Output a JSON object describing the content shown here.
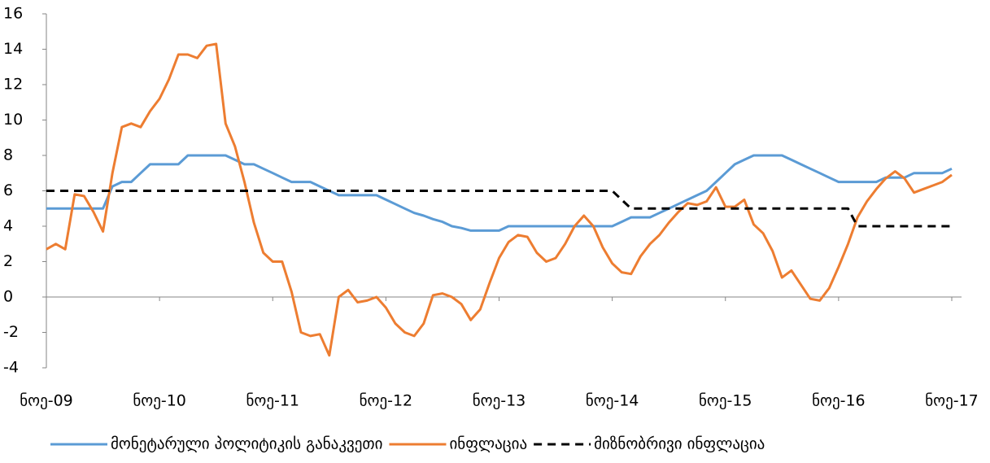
{
  "chart_data": {
    "type": "line",
    "categories": [
      "ნოე-09",
      null,
      null,
      null,
      null,
      null,
      null,
      null,
      null,
      null,
      null,
      null,
      "ნოე-10",
      null,
      null,
      null,
      null,
      null,
      null,
      null,
      null,
      null,
      null,
      null,
      "ნოე-11",
      null,
      null,
      null,
      null,
      null,
      null,
      null,
      null,
      null,
      null,
      null,
      "ნოე-12",
      null,
      null,
      null,
      null,
      null,
      null,
      null,
      null,
      null,
      null,
      null,
      "ნოე-13",
      null,
      null,
      null,
      null,
      null,
      null,
      null,
      null,
      null,
      null,
      null,
      "ნოე-14",
      null,
      null,
      null,
      null,
      null,
      null,
      null,
      null,
      null,
      null,
      null,
      "ნოე-15",
      null,
      null,
      null,
      null,
      null,
      null,
      null,
      null,
      null,
      null,
      null,
      "ნოე-16",
      null,
      null,
      null,
      null,
      null,
      null,
      null,
      null,
      null,
      null,
      null,
      "ნოე-17"
    ],
    "series": [
      {
        "name": "მონეტარული პოლიტიკის განაკვეთი",
        "color": "#5b9bd5",
        "dash": false,
        "values": [
          5,
          5,
          5,
          5,
          5,
          5,
          5,
          6.25,
          6.5,
          6.5,
          7,
          7.5,
          7.5,
          7.5,
          7.5,
          8,
          8,
          8,
          8,
          8,
          7.75,
          7.5,
          7.5,
          7.25,
          7,
          6.75,
          6.5,
          6.5,
          6.5,
          6.25,
          6,
          5.75,
          5.75,
          5.75,
          5.75,
          5.75,
          5.5,
          5.25,
          5,
          4.75,
          4.6,
          4.4,
          4.25,
          4,
          3.9,
          3.75,
          3.75,
          3.75,
          3.75,
          4,
          4,
          4,
          4,
          4,
          4,
          4,
          4,
          4,
          4,
          4,
          4,
          4.25,
          4.5,
          4.5,
          4.5,
          4.75,
          5,
          5.25,
          5.5,
          5.75,
          6,
          6.5,
          7,
          7.5,
          7.75,
          8,
          8,
          8,
          8,
          7.75,
          7.5,
          7.25,
          7,
          6.75,
          6.5,
          6.5,
          6.5,
          6.5,
          6.5,
          6.75,
          6.75,
          6.75,
          7,
          7,
          7,
          7,
          7.25
        ]
      },
      {
        "name": "ინფლაცია",
        "color": "#ed7d31",
        "dash": false,
        "values": [
          2.7,
          3,
          2.7,
          5.8,
          5.7,
          4.8,
          3.7,
          7,
          9.6,
          9.8,
          9.6,
          10.5,
          11.2,
          12.3,
          13.7,
          13.7,
          13.5,
          14.2,
          14.3,
          9.8,
          8.5,
          6.5,
          4.2,
          2.5,
          2,
          2,
          0.3,
          -2,
          -2.2,
          -2.1,
          -3.3,
          0,
          0.4,
          -0.3,
          -0.2,
          0,
          -0.6,
          -1.5,
          -2,
          -2.2,
          -1.5,
          0.1,
          0.2,
          0,
          -0.4,
          -1.3,
          -0.7,
          0.8,
          2.2,
          3.1,
          3.5,
          3.4,
          2.5,
          2,
          2.2,
          3,
          4,
          4.6,
          4,
          2.8,
          1.9,
          1.4,
          1.3,
          2.3,
          3,
          3.5,
          4.2,
          4.8,
          5.3,
          5.2,
          5.4,
          6.2,
          5.1,
          5.1,
          5.5,
          4.1,
          3.6,
          2.6,
          1.1,
          1.5,
          0.7,
          -0.1,
          -0.2,
          0.5,
          1.7,
          3,
          4.5,
          5.4,
          6.1,
          6.7,
          7.1,
          6.7,
          5.9,
          6.1,
          6.3,
          6.5,
          6.9
        ]
      },
      {
        "name": "მიზნობრივი ინფლაცია",
        "color": "#000000",
        "dash": true,
        "values": [
          6,
          6,
          6,
          6,
          6,
          6,
          6,
          6,
          6,
          6,
          6,
          6,
          6,
          6,
          6,
          6,
          6,
          6,
          6,
          6,
          6,
          6,
          6,
          6,
          6,
          6,
          6,
          6,
          6,
          6,
          6,
          6,
          6,
          6,
          6,
          6,
          6,
          6,
          6,
          6,
          6,
          6,
          6,
          6,
          6,
          6,
          6,
          6,
          6,
          6,
          6,
          6,
          6,
          6,
          6,
          6,
          6,
          6,
          6,
          6,
          6,
          5.5,
          5,
          5,
          5,
          5,
          5,
          5,
          5,
          5,
          5,
          5,
          5,
          5,
          5,
          5,
          5,
          5,
          5,
          5,
          5,
          5,
          5,
          5,
          5,
          5,
          4,
          4,
          4,
          4,
          4,
          4,
          4,
          4,
          4,
          4,
          4
        ]
      }
    ],
    "ylim": [
      -4,
      16
    ],
    "yticks": [
      -4,
      -2,
      0,
      2,
      4,
      6,
      8,
      10,
      12,
      14,
      16
    ],
    "legend": "bottom"
  }
}
